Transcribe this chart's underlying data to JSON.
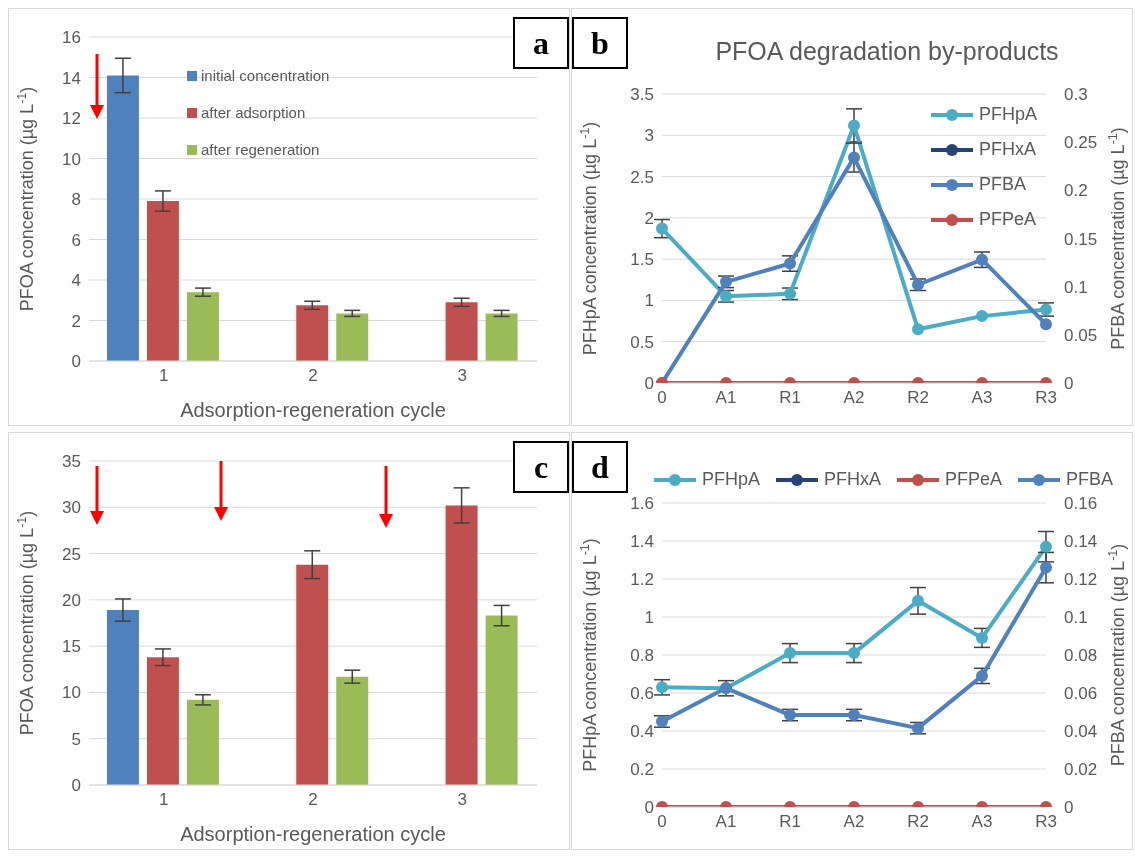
{
  "chart_data": [
    {
      "type": "bar",
      "annotations": [
        "a"
      ],
      "xlabel": "Adsorption-regeneration cycle",
      "ylabel": "PFOA concentration (µg L$^{-1}$)",
      "categories": [
        "1",
        "2",
        "3"
      ],
      "ylim": [
        0,
        16
      ],
      "yticks": [
        0,
        2,
        4,
        6,
        8,
        10,
        12,
        14,
        16
      ],
      "grid": "y",
      "legend": "top",
      "series": [
        {
          "name": "initial concentration",
          "color": "#4f81bd",
          "values": [
            14.1,
            null,
            null
          ],
          "errors": [
            0.85,
            null,
            null
          ]
        },
        {
          "name": "after adsorption",
          "color": "#c0504d",
          "values": [
            7.9,
            2.75,
            2.9
          ],
          "errors": [
            0.5,
            0.2,
            0.2
          ]
        },
        {
          "name": "after regeneration",
          "color": "#9bbb59",
          "values": [
            3.4,
            2.35,
            2.35
          ],
          "errors": [
            0.2,
            0.15,
            0.15
          ]
        }
      ]
    },
    {
      "type": "line",
      "title": "PFOA degradation by-products",
      "annotations": [
        "b"
      ],
      "ylabel": "PFHpA concentration  (µg L$^{-1}$)",
      "y2label": "PFBA concentration  (µg L$^{-1}$)",
      "categories": [
        "0",
        "A1",
        "R1",
        "A2",
        "R2",
        "A3",
        "R3"
      ],
      "ylim": [
        0,
        3.5
      ],
      "yticks": [
        0,
        0.5,
        1,
        1.5,
        2,
        2.5,
        3,
        3.5
      ],
      "y2lim": [
        0,
        0.3
      ],
      "y2ticks": [
        0,
        0.05,
        0.1,
        0.15,
        0.2,
        0.25,
        0.3
      ],
      "grid": "y",
      "legend": "top right",
      "marker": "circle",
      "series": [
        {
          "name": "PFHpA",
          "color": "#4bacc6",
          "values": [
            1.87,
            1.05,
            1.08,
            3.12,
            0.65,
            0.81,
            0.89
          ],
          "errors": [
            0.11,
            0.07,
            0.07,
            0.2,
            null,
            null,
            0.08
          ]
        },
        {
          "name": "PFHxA",
          "color": "#264478",
          "values": [
            null,
            null,
            null,
            null,
            null,
            null,
            null
          ]
        },
        {
          "name": "PFBA",
          "color": "#4f81bd",
          "axis": "y2",
          "values": [
            0,
            0.105,
            0.124,
            0.234,
            0.102,
            0.128,
            0.061
          ],
          "errors": [
            null,
            0.006,
            0.008,
            0.015,
            0.006,
            0.008,
            null
          ]
        },
        {
          "name": "PFPeA",
          "color": "#c0504d",
          "values": [
            0,
            0,
            0,
            0,
            0,
            0,
            0
          ]
        }
      ]
    },
    {
      "type": "bar",
      "annotations": [
        "c"
      ],
      "xlabel": "Adsorption-regeneration cycle",
      "ylabel": "PFOA concentration (µg L$^{-1}$)",
      "categories": [
        "1",
        "2",
        "3"
      ],
      "ylim": [
        0,
        35
      ],
      "yticks": [
        0,
        5,
        10,
        15,
        20,
        25,
        30,
        35
      ],
      "grid": "y",
      "series": [
        {
          "color": "#4f81bd",
          "values": [
            18.9,
            null,
            null
          ],
          "errors": [
            1.2,
            null,
            null
          ]
        },
        {
          "color": "#c0504d",
          "values": [
            13.8,
            23.8,
            30.2
          ],
          "errors": [
            0.9,
            1.5,
            1.9
          ]
        },
        {
          "color": "#9bbb59",
          "values": [
            9.2,
            11.7,
            18.3
          ],
          "errors": [
            0.55,
            0.7,
            1.1
          ]
        }
      ]
    },
    {
      "type": "line",
      "annotations": [
        "d"
      ],
      "ylabel": "PFHpA concentration  (µg L$^{-1}$)",
      "y2label": "PFBA concentration  (µg L$^{-1}$)",
      "categories": [
        "0",
        "A1",
        "R1",
        "A2",
        "R2",
        "A3",
        "R3"
      ],
      "ylim": [
        0,
        1.6
      ],
      "yticks": [
        0,
        0.2,
        0.4,
        0.6,
        0.8,
        1,
        1.2,
        1.4,
        1.6
      ],
      "y2lim": [
        0,
        0.16
      ],
      "y2ticks": [
        0,
        0.02,
        0.04,
        0.06,
        0.08,
        0.1,
        0.12,
        0.14,
        0.16
      ],
      "grid": "y",
      "legend": "top",
      "marker": "circle",
      "series": [
        {
          "name": "PFHpA",
          "color": "#4bacc6",
          "values": [
            0.63,
            0.625,
            0.81,
            0.81,
            1.085,
            0.89,
            1.37
          ],
          "errors": [
            0.04,
            0.04,
            0.05,
            0.05,
            0.07,
            0.05,
            0.08
          ]
        },
        {
          "name": "PFHxA",
          "color": "#264478",
          "values": [
            null,
            null,
            null,
            null,
            null,
            null,
            null
          ]
        },
        {
          "name": "PFPeA",
          "color": "#c0504d",
          "values": [
            0,
            0,
            0,
            0,
            0,
            0,
            0
          ]
        },
        {
          "name": "PFBA",
          "color": "#4f81bd",
          "axis": "y2",
          "values": [
            0.045,
            0.0626,
            0.0484,
            0.0484,
            0.0415,
            0.069,
            0.126
          ],
          "errors": [
            0.003,
            null,
            0.003,
            0.003,
            0.003,
            0.004,
            0.008
          ]
        }
      ]
    }
  ]
}
